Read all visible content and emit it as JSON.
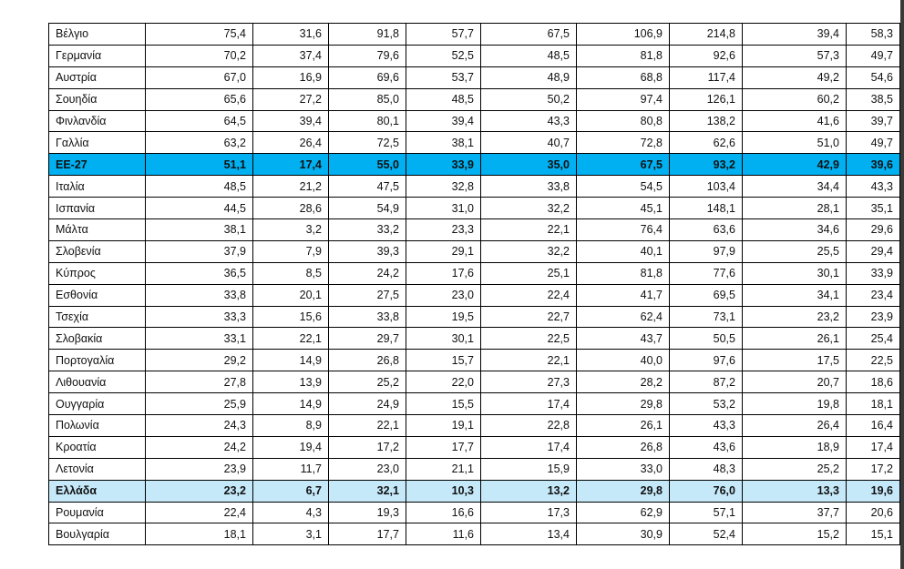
{
  "highlight_colors": {
    "eu_row": "#00b0f0",
    "greece_row": "#c6e9fa"
  },
  "rows": [
    {
      "name": "Βέλγιο",
      "values": [
        "75,4",
        "31,6",
        "91,8",
        "57,7",
        "67,5",
        "106,9",
        "214,8",
        "39,4",
        "58,3"
      ]
    },
    {
      "name": "Γερμανία",
      "values": [
        "70,2",
        "37,4",
        "79,6",
        "52,5",
        "48,5",
        "81,8",
        "92,6",
        "57,3",
        "49,7"
      ]
    },
    {
      "name": "Αυστρία",
      "values": [
        "67,0",
        "16,9",
        "69,6",
        "53,7",
        "48,9",
        "68,8",
        "117,4",
        "49,2",
        "54,6"
      ]
    },
    {
      "name": "Σουηδία",
      "values": [
        "65,6",
        "27,2",
        "85,0",
        "48,5",
        "50,2",
        "97,4",
        "126,1",
        "60,2",
        "38,5"
      ]
    },
    {
      "name": "Φινλανδία",
      "values": [
        "64,5",
        "39,4",
        "80,1",
        "39,4",
        "43,3",
        "80,8",
        "138,2",
        "41,6",
        "39,7"
      ]
    },
    {
      "name": "Γαλλία",
      "values": [
        "63,2",
        "26,4",
        "72,5",
        "38,1",
        "40,7",
        "72,8",
        "62,6",
        "51,0",
        "49,7"
      ]
    },
    {
      "name": "ΕΕ-27",
      "highlight": "eu",
      "values": [
        "51,1",
        "17,4",
        "55,0",
        "33,9",
        "35,0",
        "67,5",
        "93,2",
        "42,9",
        "39,6"
      ]
    },
    {
      "name": "Ιταλία",
      "values": [
        "48,5",
        "21,2",
        "47,5",
        "32,8",
        "33,8",
        "54,5",
        "103,4",
        "34,4",
        "43,3"
      ]
    },
    {
      "name": "Ισπανία",
      "values": [
        "44,5",
        "28,6",
        "54,9",
        "31,0",
        "32,2",
        "45,1",
        "148,1",
        "28,1",
        "35,1"
      ]
    },
    {
      "name": "Μάλτα",
      "values": [
        "38,1",
        "3,2",
        "33,2",
        "23,3",
        "22,1",
        "76,4",
        "63,6",
        "34,6",
        "29,6"
      ]
    },
    {
      "name": "Σλοβενία",
      "values": [
        "37,9",
        "7,9",
        "39,3",
        "29,1",
        "32,2",
        "40,1",
        "97,9",
        "25,5",
        "29,4"
      ]
    },
    {
      "name": "Κύπρος",
      "values": [
        "36,5",
        "8,5",
        "24,2",
        "17,6",
        "25,1",
        "81,8",
        "77,6",
        "30,1",
        "33,9"
      ]
    },
    {
      "name": "Εσθονία",
      "values": [
        "33,8",
        "20,1",
        "27,5",
        "23,0",
        "22,4",
        "41,7",
        "69,5",
        "34,1",
        "23,4"
      ]
    },
    {
      "name": "Τσεχία",
      "values": [
        "33,3",
        "15,6",
        "33,8",
        "19,5",
        "22,7",
        "62,4",
        "73,1",
        "23,2",
        "23,9"
      ]
    },
    {
      "name": "Σλοβακία",
      "values": [
        "33,1",
        "22,1",
        "29,7",
        "30,1",
        "22,5",
        "43,7",
        "50,5",
        "26,1",
        "25,4"
      ]
    },
    {
      "name": "Πορτογαλία",
      "values": [
        "29,2",
        "14,9",
        "26,8",
        "15,7",
        "22,1",
        "40,0",
        "97,6",
        "17,5",
        "22,5"
      ]
    },
    {
      "name": "Λιθουανία",
      "values": [
        "27,8",
        "13,9",
        "25,2",
        "22,0",
        "27,3",
        "28,2",
        "87,2",
        "20,7",
        "18,6"
      ]
    },
    {
      "name": "Ουγγαρία",
      "values": [
        "25,9",
        "14,9",
        "24,9",
        "15,5",
        "17,4",
        "29,8",
        "53,2",
        "19,8",
        "18,1"
      ]
    },
    {
      "name": "Πολωνία",
      "values": [
        "24,3",
        "8,9",
        "22,1",
        "19,1",
        "22,8",
        "26,1",
        "43,3",
        "26,4",
        "16,4"
      ]
    },
    {
      "name": "Κροατία",
      "values": [
        "24,2",
        "19,4",
        "17,2",
        "17,7",
        "17,4",
        "26,8",
        "43,6",
        "18,9",
        "17,4"
      ]
    },
    {
      "name": "Λετονία",
      "values": [
        "23,9",
        "11,7",
        "23,0",
        "21,1",
        "15,9",
        "33,0",
        "48,3",
        "25,2",
        "17,2"
      ]
    },
    {
      "name": "Ελλάδα",
      "highlight": "gr",
      "values": [
        "23,2",
        "6,7",
        "32,1",
        "10,3",
        "13,2",
        "29,8",
        "76,0",
        "13,3",
        "19,6"
      ]
    },
    {
      "name": "Ρουμανία",
      "values": [
        "22,4",
        "4,3",
        "19,3",
        "16,6",
        "17,3",
        "62,9",
        "57,1",
        "37,7",
        "20,6"
      ]
    },
    {
      "name": "Βουλγαρία",
      "values": [
        "18,1",
        "3,1",
        "17,7",
        "11,6",
        "13,4",
        "30,9",
        "52,4",
        "15,2",
        "15,1"
      ]
    }
  ]
}
